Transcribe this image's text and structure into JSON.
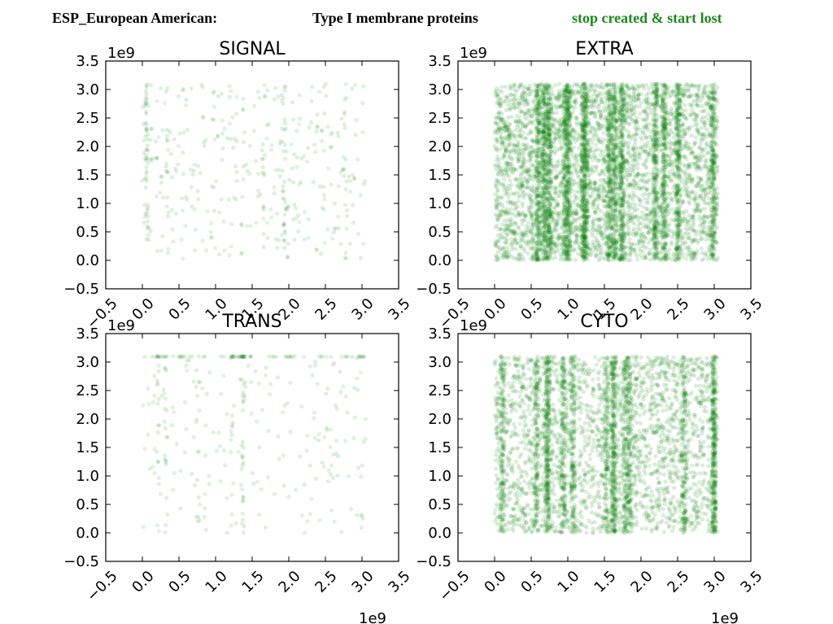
{
  "header": {
    "dataset": "ESP_European American:",
    "protein_type": "Type I membrane proteins",
    "mutation": "stop created & start lost",
    "mutation_color": "#1a8a1a"
  },
  "point_color": "#008000",
  "chart_data": [
    {
      "type": "scatter",
      "title": "SIGNAL",
      "xlim": [
        -0.5,
        3.5
      ],
      "ylim": [
        -0.5,
        3.5
      ],
      "x_offset_label": "",
      "y_offset_label": "1e9",
      "xticks": [
        "−0.5",
        "0.0",
        "0.5",
        "1.0",
        "1.5",
        "2.0",
        "2.5",
        "3.0",
        "3.5"
      ],
      "yticks": [
        "−0.5",
        "0.0",
        "0.5",
        "1.0",
        "1.5",
        "2.0",
        "2.5",
        "3.0",
        "3.5"
      ],
      "x_range": [
        0.0,
        3.05
      ],
      "y_range": [
        0.0,
        3.1
      ],
      "density": "sparse",
      "approx_points": 450
    },
    {
      "type": "scatter",
      "title": "EXTRA",
      "xlim": [
        -0.5,
        3.5
      ],
      "ylim": [
        -0.5,
        3.5
      ],
      "x_offset_label": "",
      "y_offset_label": "1e9",
      "xticks": [
        "−0.5",
        "0.0",
        "0.5",
        "1.0",
        "1.5",
        "2.0",
        "2.5",
        "3.0",
        "3.5"
      ],
      "yticks": [
        "−0.5",
        "0.0",
        "0.5",
        "1.0",
        "1.5",
        "2.0",
        "2.5",
        "3.0",
        "3.5"
      ],
      "x_range": [
        0.0,
        3.05
      ],
      "y_range": [
        0.0,
        3.1
      ],
      "density": "very dense",
      "approx_points": 7000
    },
    {
      "type": "scatter",
      "title": "TRANS",
      "xlim": [
        -0.5,
        3.5
      ],
      "ylim": [
        -0.5,
        3.5
      ],
      "x_offset_label": "1e9",
      "y_offset_label": "1e9",
      "xticks": [
        "−0.5",
        "0.0",
        "0.5",
        "1.0",
        "1.5",
        "2.0",
        "2.5",
        "3.0",
        "3.5"
      ],
      "yticks": [
        "−0.5",
        "0.0",
        "0.5",
        "1.0",
        "1.5",
        "2.0",
        "2.5",
        "3.0",
        "3.5"
      ],
      "x_range": [
        0.0,
        3.05
      ],
      "y_range": [
        0.0,
        3.1
      ],
      "density": "sparse",
      "approx_points": 350
    },
    {
      "type": "scatter",
      "title": "CYTO",
      "xlim": [
        -0.5,
        3.5
      ],
      "ylim": [
        -0.5,
        3.5
      ],
      "x_offset_label": "1e9",
      "y_offset_label": "1e9",
      "xticks": [
        "−0.5",
        "0.0",
        "0.5",
        "1.0",
        "1.5",
        "2.0",
        "2.5",
        "3.0",
        "3.5"
      ],
      "yticks": [
        "−0.5",
        "0.0",
        "0.5",
        "1.0",
        "1.5",
        "2.0",
        "2.5",
        "3.0",
        "3.5"
      ],
      "x_range": [
        0.0,
        3.05
      ],
      "y_range": [
        0.0,
        3.1
      ],
      "density": "dense",
      "approx_points": 4500
    }
  ]
}
